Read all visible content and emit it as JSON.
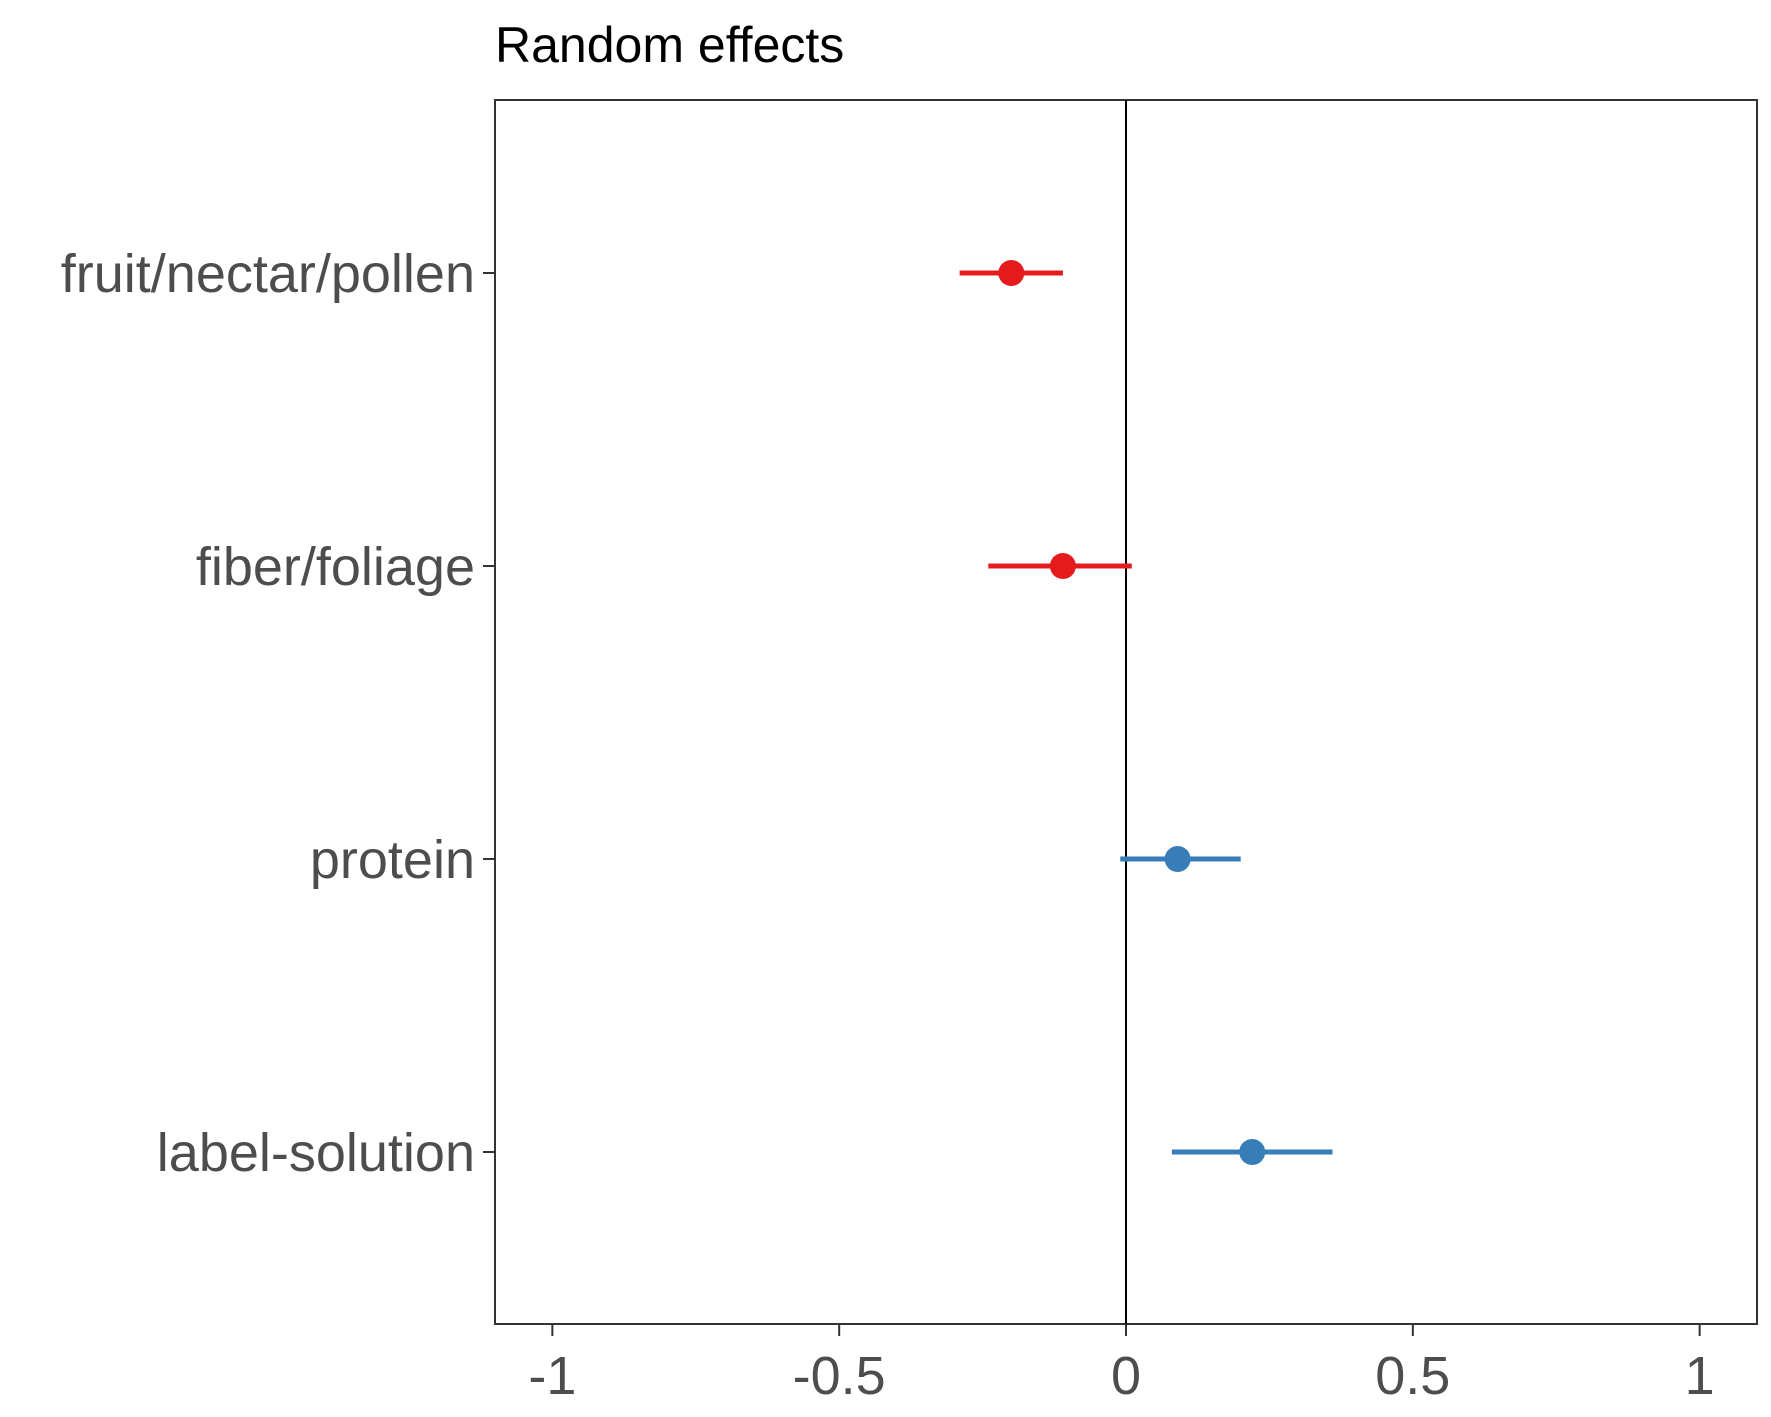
{
  "chart_data": {
    "type": "scatter",
    "subtype": "forest-plot",
    "title": "Random effects",
    "xlabel": "",
    "ylabel": "",
    "xlim": [
      -1.1,
      1.1
    ],
    "x_ticks": [
      {
        "value": -1,
        "label": "-1"
      },
      {
        "value": -0.5,
        "label": "-0.5"
      },
      {
        "value": 0,
        "label": "0"
      },
      {
        "value": 0.5,
        "label": "0.5"
      },
      {
        "value": 1,
        "label": "1"
      }
    ],
    "reference_line": 0,
    "grid": false,
    "colors": {
      "negative": "#e41a1c",
      "positive": "#377eb8",
      "axis": "#333333",
      "reference": "#000000"
    },
    "categories": [
      "fruit/nectar/pollen",
      "fiber/foliage",
      "protein",
      "label-solution"
    ],
    "points": [
      {
        "category": "fruit/nectar/pollen",
        "estimate": -0.2,
        "lower": -0.29,
        "upper": -0.11
      },
      {
        "category": "fiber/foliage",
        "estimate": -0.11,
        "lower": -0.24,
        "upper": 0.01
      },
      {
        "category": "protein",
        "estimate": 0.09,
        "lower": -0.01,
        "upper": 0.2
      },
      {
        "category": "label-solution",
        "estimate": 0.22,
        "lower": 0.08,
        "upper": 0.36
      }
    ]
  }
}
